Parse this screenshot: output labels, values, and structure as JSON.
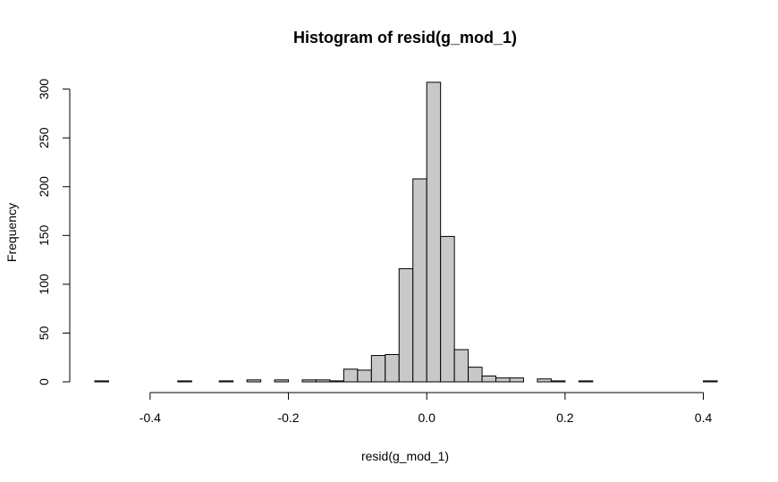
{
  "chart_data": {
    "type": "bar",
    "title": "Histogram of resid(g_mod_1)",
    "xlabel": "resid(g_mod_1)",
    "ylabel": "Frequency",
    "xlim": [
      -0.48,
      0.42
    ],
    "ylim": [
      0,
      307
    ],
    "bin_width": 0.02,
    "bin_starts": [
      -0.48,
      -0.46,
      -0.44,
      -0.42,
      -0.4,
      -0.38,
      -0.36,
      -0.34,
      -0.32,
      -0.3,
      -0.28,
      -0.26,
      -0.24,
      -0.22,
      -0.2,
      -0.18,
      -0.16,
      -0.14,
      -0.12,
      -0.1,
      -0.08,
      -0.06,
      -0.04,
      -0.02,
      0.0,
      0.02,
      0.04,
      0.06,
      0.08,
      0.1,
      0.12,
      0.14,
      0.16,
      0.18,
      0.2,
      0.22,
      0.24,
      0.26,
      0.28,
      0.3,
      0.32,
      0.34,
      0.36,
      0.38,
      0.4
    ],
    "values": [
      1,
      0,
      0,
      0,
      0,
      0,
      1,
      0,
      0,
      1,
      0,
      2,
      0,
      2,
      0,
      2,
      2,
      1,
      13,
      12,
      27,
      28,
      116,
      208,
      307,
      149,
      33,
      15,
      6,
      4,
      4,
      0,
      3,
      1,
      0,
      1,
      0,
      0,
      0,
      0,
      0,
      0,
      0,
      0,
      1
    ],
    "x_ticks": [
      -0.4,
      -0.2,
      0.0,
      0.2,
      0.4
    ],
    "x_tick_labels": [
      "-0.4",
      "-0.2",
      "0.0",
      "0.2",
      "0.4"
    ],
    "y_ticks": [
      0,
      50,
      100,
      150,
      200,
      250,
      300
    ],
    "y_tick_labels": [
      "0",
      "50",
      "100",
      "150",
      "200",
      "250",
      "300"
    ],
    "grid": false,
    "bar_color": "#c8c8c8",
    "border_color": "#000000"
  }
}
